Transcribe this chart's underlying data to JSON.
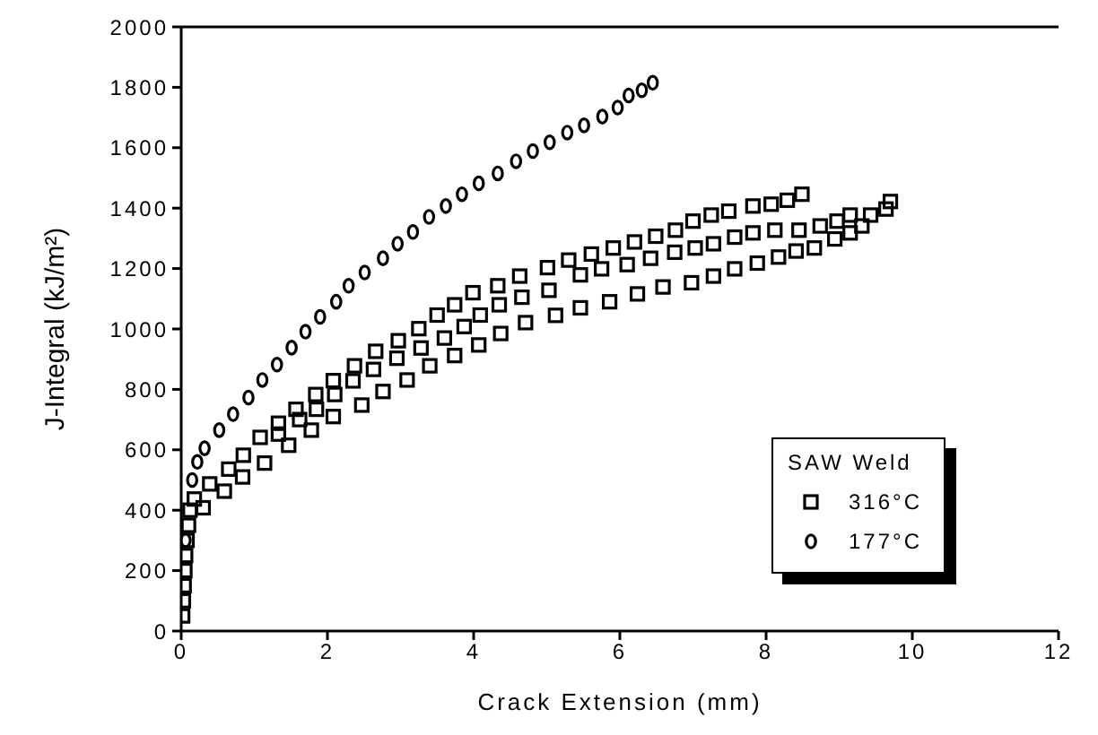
{
  "chart_data": {
    "type": "scatter",
    "xlabel": "Crack Extension (mm)",
    "ylabel": "J-Integral (kJ/m²)",
    "legend_title": "SAW Weld",
    "xlim": [
      0,
      12
    ],
    "xticks": [
      0,
      2,
      4,
      6,
      8,
      10,
      12
    ],
    "ylim": [
      0,
      2000
    ],
    "yticks": [
      0,
      200,
      400,
      600,
      800,
      1000,
      1200,
      1400,
      1600,
      1800,
      2000
    ],
    "legend": "bottom right",
    "series": [
      {
        "name": "316°C",
        "color": "#000000",
        "marker": "square",
        "x": [
          0.02,
          0.03,
          0.04,
          0.05,
          0.06,
          0.08,
          0.1,
          0.12,
          0.18,
          0.39,
          0.65,
          0.85,
          1.08,
          1.33,
          1.57,
          1.84,
          2.08,
          2.37,
          2.66,
          2.97,
          3.25,
          3.5,
          3.74,
          3.99,
          4.33,
          4.63,
          5.01,
          5.3,
          5.61,
          5.91,
          6.2,
          6.49,
          6.76,
          7.0,
          7.25,
          7.49,
          7.82,
          8.07,
          8.29,
          8.49,
          0.3,
          0.59,
          0.84,
          1.14,
          1.47,
          1.78,
          2.08,
          2.47,
          2.76,
          3.09,
          3.4,
          3.74,
          4.07,
          4.37,
          4.71,
          5.12,
          5.46,
          5.86,
          6.24,
          6.59,
          6.98,
          7.28,
          7.57,
          7.88,
          8.17,
          8.41,
          8.66,
          8.94,
          9.15,
          9.31,
          1.33,
          1.62,
          1.85,
          2.1,
          2.35,
          2.63,
          2.95,
          3.28,
          3.6,
          3.87,
          4.09,
          4.35,
          4.66,
          5.03,
          5.46,
          5.75,
          6.1,
          6.42,
          6.75,
          7.03,
          7.28,
          7.57,
          7.82,
          8.12,
          8.45,
          8.74,
          8.97,
          9.15,
          9.43,
          9.64,
          9.7
        ],
        "values": [
          50,
          100,
          150,
          200,
          250,
          300,
          350,
          400,
          437,
          487,
          536,
          582,
          641,
          688,
          734,
          783,
          829,
          878,
          926,
          961,
          1001,
          1046,
          1080,
          1120,
          1143,
          1175,
          1203,
          1228,
          1248,
          1268,
          1288,
          1307,
          1327,
          1357,
          1377,
          1390,
          1407,
          1413,
          1426,
          1446,
          408,
          463,
          510,
          556,
          615,
          665,
          710,
          748,
          793,
          831,
          878,
          912,
          947,
          985,
          1021,
          1045,
          1070,
          1090,
          1116,
          1139,
          1153,
          1175,
          1199,
          1218,
          1238,
          1258,
          1268,
          1298,
          1318,
          1341,
          652,
          700,
          734,
          783,
          828,
          866,
          903,
          937,
          970,
          1008,
          1046,
          1080,
          1105,
          1128,
          1179,
          1199,
          1213,
          1234,
          1254,
          1268,
          1282,
          1304,
          1318,
          1327,
          1327,
          1341,
          1357,
          1377,
          1377,
          1397,
          1422
        ]
      },
      {
        "name": "177°C",
        "color": "#000000",
        "marker": "circle",
        "x": [
          0.06,
          0.15,
          0.22,
          0.32,
          0.52,
          0.71,
          0.92,
          1.11,
          1.31,
          1.51,
          1.7,
          1.9,
          2.12,
          2.29,
          2.51,
          2.76,
          2.96,
          3.17,
          3.39,
          3.62,
          3.84,
          4.07,
          4.33,
          4.58,
          4.81,
          5.04,
          5.28,
          5.51,
          5.76,
          5.97,
          6.12,
          6.3,
          6.45
        ],
        "values": [
          300,
          500,
          560,
          605,
          665,
          718,
          773,
          831,
          882,
          938,
          991,
          1040,
          1090,
          1143,
          1187,
          1234,
          1282,
          1321,
          1371,
          1407,
          1446,
          1482,
          1515,
          1555,
          1589,
          1618,
          1650,
          1674,
          1703,
          1733,
          1773,
          1790,
          1815
        ]
      }
    ]
  }
}
